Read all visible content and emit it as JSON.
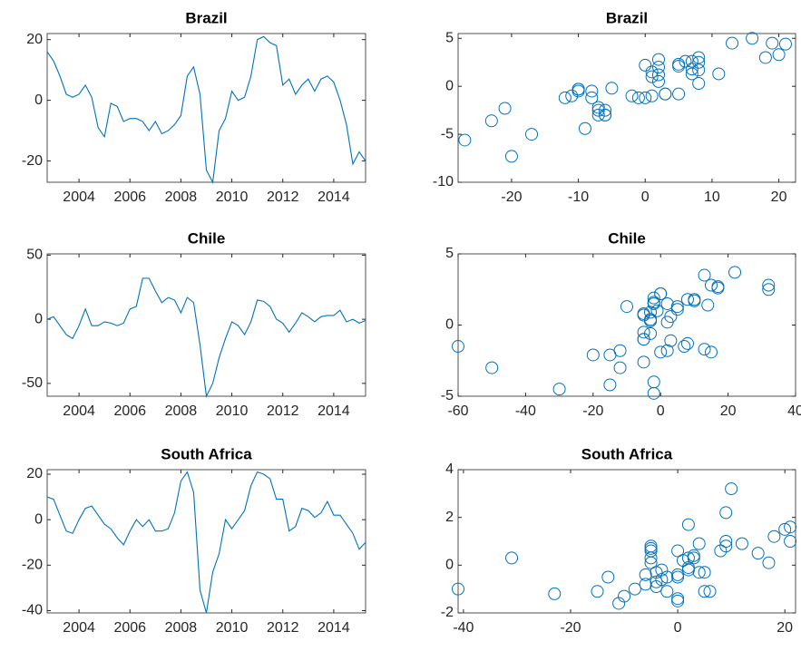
{
  "chart_data": [
    {
      "type": "line",
      "title": "Brazil",
      "color": "#0072bd",
      "x": [
        2002.75,
        2003,
        2003.25,
        2003.5,
        2003.75,
        2004,
        2004.25,
        2004.5,
        2004.75,
        2005,
        2005.25,
        2005.5,
        2005.75,
        2006,
        2006.25,
        2006.5,
        2006.75,
        2007,
        2007.25,
        2007.5,
        2007.75,
        2008,
        2008.25,
        2008.5,
        2008.75,
        2009,
        2009.25,
        2009.5,
        2009.75,
        2010,
        2010.25,
        2010.5,
        2010.75,
        2011,
        2011.25,
        2011.5,
        2011.75,
        2012,
        2012.25,
        2012.5,
        2012.75,
        2013,
        2013.25,
        2013.5,
        2013.75,
        2014,
        2014.25,
        2014.5,
        2014.75,
        2015,
        2015.25
      ],
      "values": [
        16,
        13,
        8,
        2,
        1,
        2,
        5,
        1,
        -9,
        -12,
        -1,
        -2,
        -7,
        -6,
        -6,
        -7,
        -10,
        -7,
        -11,
        -10,
        -8,
        -5,
        8,
        11,
        2,
        -23,
        -27,
        -10,
        -6,
        3,
        0,
        1,
        8,
        20,
        21,
        19,
        18,
        5,
        7,
        2,
        5,
        7,
        3,
        7,
        8,
        6,
        0,
        -8,
        -21,
        -17,
        -20
      ],
      "xlim": [
        2002.75,
        2015.25
      ],
      "xticks": [
        2004,
        2006,
        2008,
        2010,
        2012,
        2014
      ],
      "ylim": [
        -27,
        22
      ],
      "yticks": [
        -20,
        0,
        20
      ]
    },
    {
      "type": "scatter",
      "title": "Brazil",
      "color": "#0072bd",
      "x": [
        16,
        13,
        8,
        2,
        1,
        2,
        5,
        1,
        -9,
        -12,
        -1,
        -2,
        -7,
        -6,
        -6,
        -7,
        -10,
        -7,
        -11,
        -10,
        -8,
        -5,
        8,
        11,
        2,
        -23,
        -27,
        -10,
        -6,
        3,
        0,
        1,
        8,
        20,
        21,
        19,
        18,
        5,
        7,
        2,
        5,
        7,
        3,
        7,
        8,
        6,
        0,
        -8,
        -21,
        -17,
        -20
      ],
      "values": [
        5,
        4.5,
        2.5,
        2,
        1,
        0.5,
        2.3,
        -1,
        -4.4,
        -1.2,
        -1.2,
        -1,
        -2.5,
        -3,
        -2.5,
        -3,
        -0.3,
        -2.2,
        -1,
        -0.5,
        -1.2,
        -0.2,
        3,
        1.3,
        2.8,
        -3.6,
        -5.6,
        -0.3,
        -3,
        -0.8,
        2.2,
        1.5,
        0.3,
        3.3,
        4.4,
        4.5,
        3,
        -0.8,
        1.8,
        1.2,
        2.1,
        2.6,
        -0.8,
        1.3,
        1.7,
        2.6,
        -1.2,
        -0.5,
        -2.3,
        -5,
        -7.3
      ],
      "xlim": [
        -28,
        22.5
      ],
      "xticks": [
        -20,
        -10,
        0,
        10,
        20
      ],
      "ylim": [
        -10,
        5.5
      ],
      "yticks": [
        -10,
        -5,
        0,
        5
      ]
    },
    {
      "type": "line",
      "title": "Chile",
      "color": "#0072bd",
      "x": [
        2002.75,
        2003,
        2003.25,
        2003.5,
        2003.75,
        2004,
        2004.25,
        2004.5,
        2004.75,
        2005,
        2005.25,
        2005.5,
        2005.75,
        2006,
        2006.25,
        2006.5,
        2006.75,
        2007,
        2007.25,
        2007.5,
        2007.75,
        2008,
        2008.25,
        2008.5,
        2008.75,
        2009,
        2009.25,
        2009.5,
        2009.75,
        2010,
        2010.25,
        2010.5,
        2010.75,
        2011,
        2011.25,
        2011.5,
        2011.75,
        2012,
        2012.25,
        2012.5,
        2012.75,
        2013,
        2013.25,
        2013.5,
        2013.75,
        2014,
        2014.25,
        2014.5,
        2014.75,
        2015,
        2015.25
      ],
      "values": [
        0,
        2,
        -5,
        -12,
        -15,
        -5,
        8,
        -5,
        -5,
        -2,
        -3,
        -5,
        -3,
        8,
        10,
        32,
        32,
        22,
        13,
        17,
        15,
        5,
        17,
        13,
        -20,
        -60,
        -50,
        -30,
        -15,
        -2,
        -5,
        -12,
        -2,
        15,
        14,
        10,
        0,
        -3,
        -10,
        -3,
        5,
        2,
        -2,
        2,
        3,
        3,
        7,
        -2,
        0,
        -3,
        -1
      ],
      "xlim": [
        2002.75,
        2015.25
      ],
      "xticks": [
        2004,
        2006,
        2008,
        2010,
        2012,
        2014
      ],
      "ylim": [
        -60,
        51
      ],
      "yticks": [
        -50,
        0,
        50
      ]
    },
    {
      "type": "scatter",
      "title": "Chile",
      "color": "#0072bd",
      "x": [
        0,
        2,
        -5,
        -12,
        -15,
        -5,
        8,
        -5,
        -5,
        -2,
        -3,
        -5,
        -3,
        8,
        10,
        32,
        32,
        22,
        13,
        17,
        15,
        5,
        17,
        13,
        -20,
        -60,
        -50,
        -30,
        -15,
        -2,
        -5,
        -12,
        -2,
        15,
        14,
        10,
        0,
        -3,
        -10,
        -3,
        5,
        2,
        -2,
        2,
        3,
        3,
        7,
        -2,
        0,
        -3,
        -1
      ],
      "values": [
        2.2,
        1.5,
        -1,
        -1.8,
        -4.2,
        0.7,
        1.8,
        -0.5,
        -2.6,
        1.5,
        0.3,
        -1,
        0.9,
        -1.3,
        1.8,
        2.8,
        2.5,
        3.7,
        -1.7,
        2.6,
        2.8,
        1.3,
        2.7,
        3.5,
        -2.1,
        -1.5,
        -3,
        -4.5,
        -2.1,
        -4.8,
        0.8,
        -3,
        1.9,
        -1.9,
        1.4,
        1.7,
        -1.9,
        0.3,
        1.3,
        -0.6,
        1.1,
        -1.8,
        1.6,
        0.2,
        -1.1,
        0.6,
        -1.5,
        -4,
        2.2,
        0.4,
        1.0
      ],
      "xlim": [
        -60,
        40
      ],
      "xticks": [
        -60,
        -40,
        -20,
        0,
        20,
        40
      ],
      "ylim": [
        -5,
        5
      ],
      "yticks": [
        -5,
        0,
        5
      ]
    },
    {
      "type": "line",
      "title": "South Africa",
      "color": "#0072bd",
      "x": [
        2002.75,
        2003,
        2003.25,
        2003.5,
        2003.75,
        2004,
        2004.25,
        2004.5,
        2004.75,
        2005,
        2005.25,
        2005.5,
        2005.75,
        2006,
        2006.25,
        2006.5,
        2006.75,
        2007,
        2007.25,
        2007.5,
        2007.75,
        2008,
        2008.25,
        2008.5,
        2008.75,
        2009,
        2009.25,
        2009.5,
        2009.75,
        2010,
        2010.25,
        2010.5,
        2010.75,
        2011,
        2011.25,
        2011.5,
        2011.75,
        2012,
        2012.25,
        2012.5,
        2012.75,
        2013,
        2013.25,
        2013.5,
        2013.75,
        2014,
        2014.25,
        2014.5,
        2014.75,
        2015,
        2015.25
      ],
      "values": [
        10,
        9,
        2,
        -5,
        -6,
        0,
        5,
        6,
        2,
        -2,
        -4,
        -8,
        -11,
        -5,
        0,
        -3,
        0,
        -5,
        -5,
        -4,
        3,
        17,
        21,
        12,
        -31,
        -41,
        -23,
        -15,
        0,
        -4,
        0,
        4,
        15,
        21,
        20,
        18,
        9,
        9,
        -5,
        -3,
        5,
        4,
        1,
        3,
        8,
        2,
        2,
        -2,
        -6,
        -13,
        -10
      ],
      "xlim": [
        2002.75,
        2015.25
      ],
      "xticks": [
        2004,
        2006,
        2008,
        2010,
        2012,
        2014
      ],
      "ylim": [
        -41,
        22
      ],
      "yticks": [
        -40,
        -20,
        0,
        20
      ]
    },
    {
      "type": "scatter",
      "title": "South Africa",
      "color": "#0072bd",
      "x": [
        10,
        9,
        2,
        -5,
        -6,
        0,
        5,
        6,
        2,
        -2,
        -4,
        -8,
        -11,
        -5,
        0,
        -3,
        0,
        -5,
        -5,
        -4,
        3,
        17,
        21,
        12,
        -31,
        -41,
        -23,
        -15,
        0,
        -4,
        0,
        4,
        15,
        21,
        20,
        18,
        9,
        9,
        -5,
        -3,
        5,
        4,
        1,
        3,
        8,
        2,
        2,
        -2,
        -6,
        -13,
        -10
      ],
      "values": [
        3.2,
        2.2,
        0.3,
        0.7,
        -0.4,
        0.6,
        -1.1,
        -1.1,
        1.7,
        -0.5,
        -0.7,
        -1,
        -1.6,
        0.8,
        -0.4,
        -0.2,
        -1.5,
        0.6,
        0.1,
        -0.9,
        0.4,
        0.1,
        1.6,
        0.9,
        0.3,
        -1,
        -1.2,
        -1.1,
        -0.5,
        -0.3,
        -1.4,
        -0.3,
        0.5,
        1.0,
        1.5,
        1.2,
        0.8,
        1.0,
        0.3,
        -0.6,
        -0.3,
        0.9,
        0.2,
        0.3,
        0.6,
        -0.1,
        -0.2,
        -1.1,
        -0.8,
        -0.5,
        -1.3
      ],
      "xlim": [
        -41,
        22
      ],
      "xticks": [
        -40,
        -20,
        0,
        20
      ],
      "ylim": [
        -2,
        4
      ],
      "yticks": [
        -2,
        0,
        2,
        4
      ]
    }
  ]
}
